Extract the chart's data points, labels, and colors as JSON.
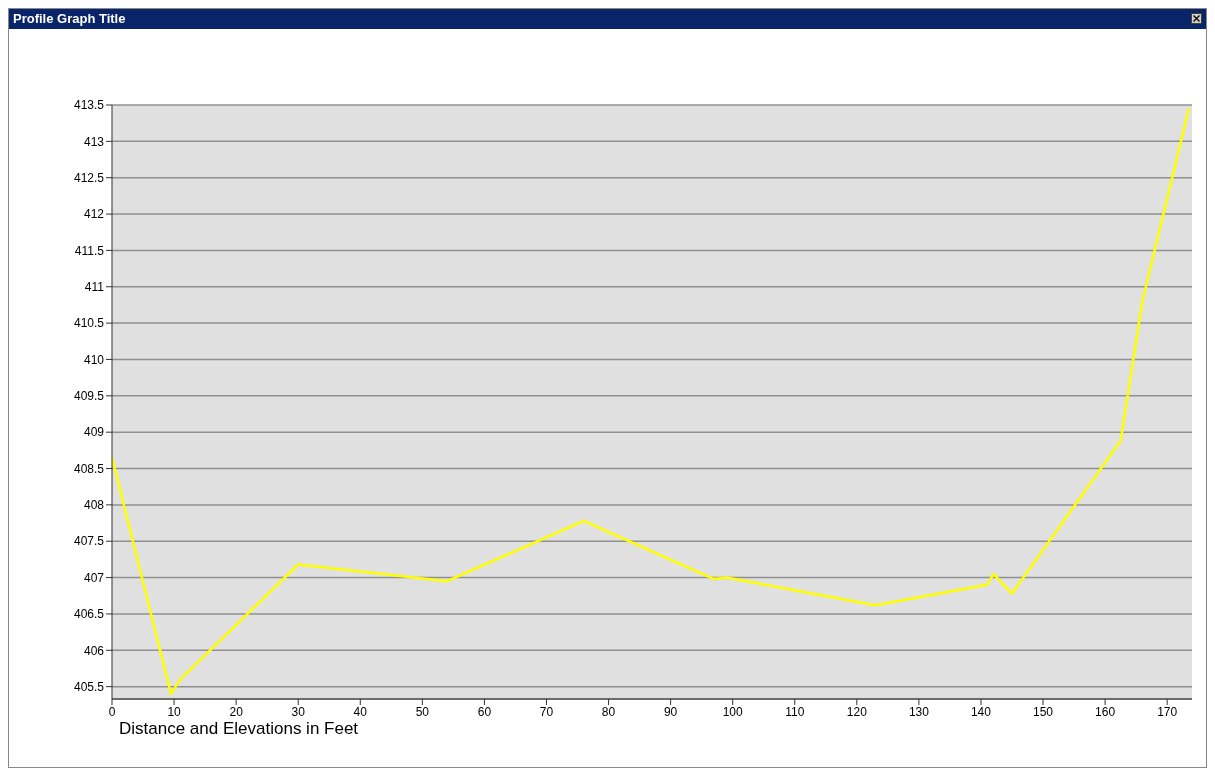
{
  "chart_data": {
    "type": "line",
    "title": "Profile Graph Title",
    "annotations": [
      "Distance and Elevations in Feet"
    ],
    "x": [
      0,
      9.5,
      11,
      30,
      54,
      76,
      97,
      99,
      123,
      141,
      142,
      145,
      162.5,
      166,
      173.5
    ],
    "series": [
      {
        "color": "#ffff00",
        "values": [
          408.65,
          405.4,
          405.6,
          407.18,
          406.95,
          407.78,
          406.98,
          407.0,
          406.62,
          406.9,
          407.05,
          406.78,
          408.88,
          410.8,
          413.45
        ]
      }
    ],
    "xlim": [
      0,
      174
    ],
    "xticks": [
      0,
      10,
      20,
      30,
      40,
      50,
      60,
      70,
      80,
      90,
      100,
      110,
      120,
      130,
      140,
      150,
      160,
      170
    ],
    "ylim": [
      405.33,
      413.5
    ],
    "yticks": [
      405.5,
      406,
      406.5,
      407,
      407.5,
      408,
      408.5,
      409,
      409.5,
      410,
      410.5,
      411,
      411.5,
      412,
      412.5,
      413,
      413.5
    ],
    "grid": "y",
    "legend": false,
    "marker": "none",
    "line_style": "solid"
  }
}
